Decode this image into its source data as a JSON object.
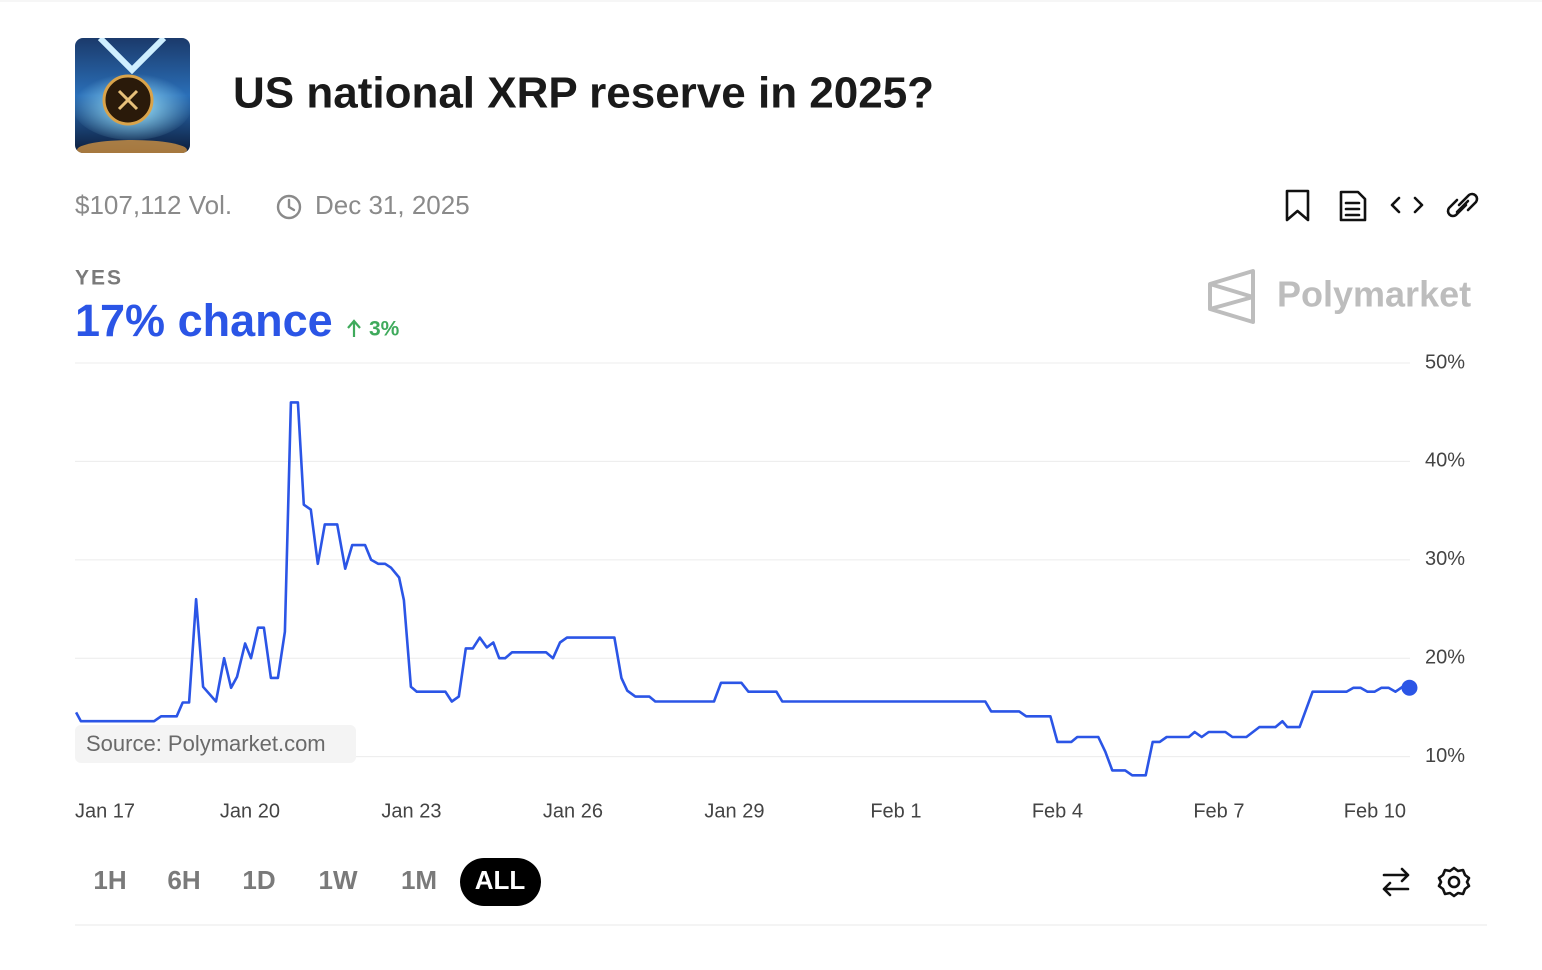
{
  "header": {
    "title": "US national XRP reserve in 2025?",
    "volume": "$107,112 Vol.",
    "end_date": "Dec 31, 2025"
  },
  "outcome": {
    "label": "YES",
    "chance": "17% chance",
    "change": "3%"
  },
  "brand": "Polymarket",
  "ranges": [
    "1H",
    "6H",
    "1D",
    "1W",
    "1M",
    "ALL"
  ],
  "chart_data": {
    "type": "line",
    "source": "Source: Polymarket.com",
    "x": [
      -0.23,
      -0.14,
      1.22,
      1.35,
      1.64,
      1.75,
      1.87,
      2.0,
      2.13,
      2.37,
      2.52,
      2.65,
      2.76,
      2.91,
      3.02,
      3.15,
      3.26,
      3.39,
      3.52,
      3.65,
      3.76,
      3.89,
      4.0,
      4.13,
      4.26,
      4.39,
      4.62,
      4.77,
      4.9,
      5.14,
      5.25,
      5.38,
      5.51,
      5.62,
      5.77,
      5.86,
      5.99,
      6.1,
      6.63,
      6.75,
      6.88,
      7.01,
      7.14,
      7.27,
      7.4,
      7.52,
      7.63,
      7.74,
      7.87,
      8.5,
      8.63,
      8.76,
      8.89,
      9.77,
      9.9,
      10.01,
      10.16,
      10.42,
      10.53,
      11.62,
      11.75,
      12.13,
      12.26,
      12.78,
      12.89,
      16.66,
      16.77,
      17.29,
      17.42,
      17.87,
      18.0,
      18.26,
      18.37,
      18.76,
      18.89,
      19.02,
      19.26,
      19.39,
      19.64,
      19.77,
      19.9,
      20.03,
      20.44,
      20.55,
      20.68,
      20.81,
      21.12,
      21.25,
      21.51,
      21.75,
      22.05,
      22.18,
      22.27,
      22.5,
      22.74,
      23.37,
      23.5,
      23.63,
      23.76,
      23.89,
      24.02,
      24.15,
      24.28,
      24.41,
      24.54
    ],
    "series": [
      {
        "color": "#2b55e6",
        "values": [
          14.5,
          13.6,
          13.6,
          14.1,
          14.1,
          15.5,
          15.5,
          26.0,
          17.1,
          15.6,
          20.0,
          17.0,
          18.1,
          21.5,
          20.0,
          23.1,
          23.1,
          18.0,
          18.0,
          22.7,
          46.0,
          46.0,
          35.6,
          35.1,
          29.6,
          33.6,
          33.6,
          29.1,
          31.5,
          31.5,
          30.0,
          29.6,
          29.6,
          29.2,
          28.2,
          25.9,
          17.1,
          16.6,
          16.6,
          15.6,
          16.1,
          21.0,
          21.0,
          22.1,
          21.1,
          21.6,
          20.0,
          20.0,
          20.6,
          20.6,
          20.0,
          21.6,
          22.1,
          22.1,
          18.0,
          16.7,
          16.1,
          16.1,
          15.6,
          15.6,
          17.5,
          17.5,
          16.6,
          16.6,
          15.6,
          15.6,
          14.6,
          14.6,
          14.1,
          14.1,
          11.5,
          11.5,
          12.0,
          12.0,
          10.5,
          8.6,
          8.6,
          8.1,
          8.1,
          11.5,
          11.5,
          12.0,
          12.0,
          12.5,
          12.0,
          12.5,
          12.5,
          12.0,
          12.0,
          13.0,
          13.0,
          13.6,
          13.0,
          13.0,
          16.6,
          16.6,
          17.0,
          17.0,
          16.6,
          16.6,
          17.0,
          17.0,
          16.6,
          17.1,
          17.0
        ]
      }
    ],
    "xlim": [
      -0.25,
      24.55
    ],
    "xticks": [
      {
        "value": 0,
        "label": "Jan 17"
      },
      {
        "value": 3,
        "label": "Jan 20"
      },
      {
        "value": 6,
        "label": "Jan 23"
      },
      {
        "value": 9,
        "label": "Jan 26"
      },
      {
        "value": 12,
        "label": "Jan 29"
      },
      {
        "value": 15,
        "label": "Feb 1"
      },
      {
        "value": 18,
        "label": "Feb 4"
      },
      {
        "value": 21,
        "label": "Feb 7"
      },
      {
        "value": 24,
        "label": "Feb 10"
      }
    ],
    "ylim": [
      6,
      50
    ],
    "yticks": [
      {
        "value": 10,
        "label": "10%"
      },
      {
        "value": 20,
        "label": "20%"
      },
      {
        "value": 30,
        "label": "30%"
      },
      {
        "value": 40,
        "label": "40%"
      },
      {
        "value": 50,
        "label": "50%"
      }
    ],
    "grid": true
  }
}
